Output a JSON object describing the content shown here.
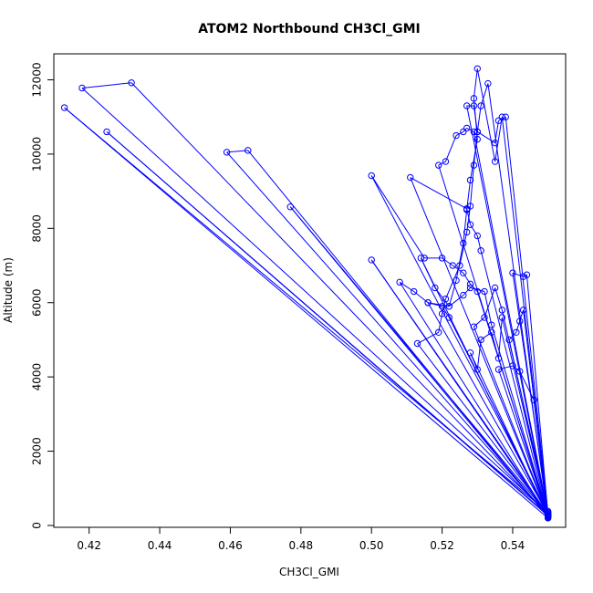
{
  "chart_data": {
    "type": "line",
    "title": "ATOM2 Northbound CH3Cl_GMI",
    "xlabel": "CH3Cl_GMI",
    "ylabel": "Altitude (m)",
    "xlim": [
      0.41,
      0.555
    ],
    "ylim": [
      -50,
      12700
    ],
    "xticks": [
      0.42,
      0.44,
      0.46,
      0.48,
      0.5,
      0.52,
      0.54
    ],
    "xtick_labels": [
      "0.42",
      "0.44",
      "0.46",
      "0.48",
      "0.50",
      "0.52",
      "0.54"
    ],
    "yticks": [
      0,
      2000,
      4000,
      6000,
      8000,
      10000,
      12000
    ],
    "ytick_labels": [
      "0",
      "2000",
      "4000",
      "6000",
      "8000",
      "10000",
      "12000"
    ],
    "grid": false,
    "legend": "none",
    "colors": {
      "series": "#0000ff",
      "axis": "#000000",
      "background": "#ffffff"
    },
    "series": [
      {
        "x": [
          0.55,
          0.514,
          0.518,
          0.522,
          0.524,
          0.526,
          0.527,
          0.528,
          0.53,
          0.529,
          0.53,
          0.535,
          0.537,
          0.55,
          0.513,
          0.519,
          0.52,
          0.521,
          0.525,
          0.527,
          0.528,
          0.529,
          0.53,
          0.531,
          0.533,
          0.55,
          0.413,
          0.55,
          0.418,
          0.432,
          0.55,
          0.425,
          0.55,
          0.459,
          0.465,
          0.55,
          0.477,
          0.55,
          0.5,
          0.55,
          0.508,
          0.512,
          0.516,
          0.52,
          0.522,
          0.55,
          0.5,
          0.515,
          0.52,
          0.523,
          0.526,
          0.528,
          0.53,
          0.55,
          0.511,
          0.527,
          0.528,
          0.53,
          0.531,
          0.55,
          0.519,
          0.521,
          0.524,
          0.526,
          0.527,
          0.529,
          0.55,
          0.516,
          0.522,
          0.526,
          0.528,
          0.532,
          0.534,
          0.55,
          0.527,
          0.529,
          0.53,
          0.535,
          0.536,
          0.538,
          0.55,
          0.54,
          0.543,
          0.544,
          0.55,
          0.539,
          0.541,
          0.542,
          0.543,
          0.55,
          0.536,
          0.54,
          0.542,
          0.546,
          0.55,
          0.528,
          0.53,
          0.531,
          0.534,
          0.536,
          0.537,
          0.55,
          0.529,
          0.532,
          0.535,
          0.537,
          0.55
        ],
        "y": [
          250,
          7200,
          6400,
          5900,
          6600,
          7600,
          8500,
          9300,
          10400,
          11500,
          12300,
          9800,
          11000,
          300,
          4900,
          5200,
          5700,
          6100,
          7000,
          7900,
          8600,
          9700,
          10600,
          11300,
          11900,
          200,
          11250,
          350,
          11780,
          11920,
          280,
          10600,
          260,
          10050,
          10100,
          220,
          8580,
          300,
          7150,
          250,
          6550,
          6300,
          6000,
          5900,
          5600,
          320,
          9420,
          7200,
          7200,
          7000,
          6800,
          6500,
          6300,
          280,
          9370,
          8530,
          8100,
          7800,
          7400,
          240,
          9700,
          9800,
          10500,
          10600,
          10700,
          10600,
          300,
          6000,
          5900,
          6200,
          6400,
          6300,
          5400,
          260,
          11300,
          11300,
          10600,
          10300,
          10900,
          11000,
          350,
          6800,
          6700,
          6750,
          280,
          5000,
          5200,
          5500,
          5800,
          260,
          4200,
          4300,
          4150,
          3380,
          240,
          4650,
          4200,
          5000,
          5200,
          4500,
          5600,
          300,
          5350,
          5600,
          6400,
          5800,
          380
        ]
      }
    ]
  }
}
